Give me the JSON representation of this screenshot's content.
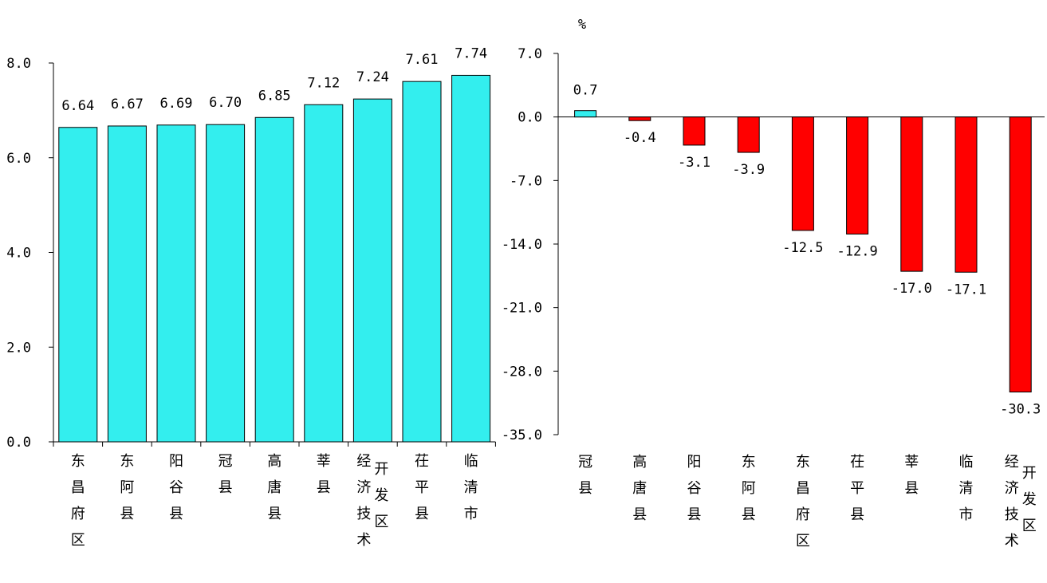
{
  "chart_data": [
    {
      "type": "bar",
      "categories": [
        "东昌府区",
        "东阿县",
        "阳谷县",
        "冠县",
        "高唐县",
        "莘县",
        "经济技术开发区",
        "茌平县",
        "临清市"
      ],
      "values": [
        6.64,
        6.67,
        6.69,
        6.7,
        6.85,
        7.12,
        7.24,
        7.61,
        7.74
      ],
      "value_labels": [
        "6.64",
        "6.67",
        "6.69",
        "6.70",
        "6.85",
        "7.12",
        "7.24",
        "7.61",
        "7.74"
      ],
      "ylim": [
        0,
        8
      ],
      "ticks": [
        "0.0",
        "2.0",
        "4.0",
        "6.0",
        "8.0"
      ],
      "tick_values": [
        0,
        2,
        4,
        6,
        8
      ],
      "grid": false,
      "bar_color": "#33EEEE"
    },
    {
      "type": "bar",
      "unit": "%",
      "categories": [
        "冠县",
        "高唐县",
        "阳谷县",
        "东阿县",
        "东昌府区",
        "茌平县",
        "莘县",
        "临清市",
        "经济技术开发区"
      ],
      "values": [
        0.7,
        -0.4,
        -3.1,
        -3.9,
        -12.5,
        -12.9,
        -17.0,
        -17.1,
        -30.3
      ],
      "value_labels": [
        "0.7",
        "-0.4",
        "-3.1",
        "-3.9",
        "-12.5",
        "-12.9",
        "-17.0",
        "-17.1",
        "-30.3"
      ],
      "ylim": [
        -35,
        7
      ],
      "ticks": [
        "7.0",
        "0.0",
        "-7.0",
        "-14.0",
        "-21.0",
        "-28.0",
        "-35.0"
      ],
      "tick_values": [
        7,
        0,
        -7,
        -14,
        -21,
        -28,
        -35
      ],
      "grid": false,
      "positive_color": "#33EEEE",
      "negative_color": "#FF0000"
    }
  ]
}
